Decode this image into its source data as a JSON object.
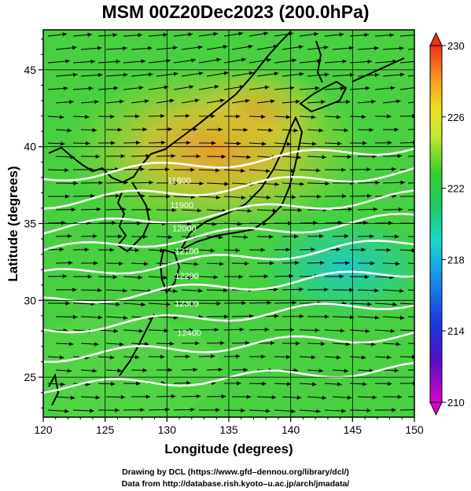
{
  "title": "MSM 00Z20Dec2023 (200.0hPa)",
  "x_axis": {
    "label": "Longitude (degrees)",
    "ticks": [
      "120",
      "125",
      "130",
      "135",
      "140",
      "145",
      "150"
    ],
    "range": [
      120,
      150
    ]
  },
  "y_axis": {
    "label": "Latitude  (degrees)",
    "ticks": [
      "25",
      "30",
      "35",
      "40",
      "45"
    ],
    "range": [
      22.4,
      47.6
    ]
  },
  "colorbar": {
    "ticks": [
      "210",
      "214",
      "218",
      "222",
      "226",
      "230"
    ],
    "range": [
      210,
      230
    ]
  },
  "contour_labels": [
    "11800",
    "11900",
    "12000",
    "12100",
    "12200",
    "12300",
    "12400"
  ],
  "contour_values": [
    11800,
    11900,
    12000,
    12100,
    12200,
    12300,
    12400
  ],
  "credits": {
    "line1": "Drawing by DCL (https://www.gfd–dennou.org/library/dcl/)",
    "line2": "Data from http://database.rish.kyoto–u.ac.jp/arch/jmadata/"
  },
  "colors": {
    "colorbar_low": "#e000d0",
    "colorbar_mid_low": "#1838e0",
    "colorbar_mid": "#18d8d0",
    "colorbar_green": "#20cc40",
    "colorbar_yellow": "#e8e830",
    "colorbar_high": "#f03018",
    "contour": "#ffffff",
    "vectors": "#000000"
  }
}
